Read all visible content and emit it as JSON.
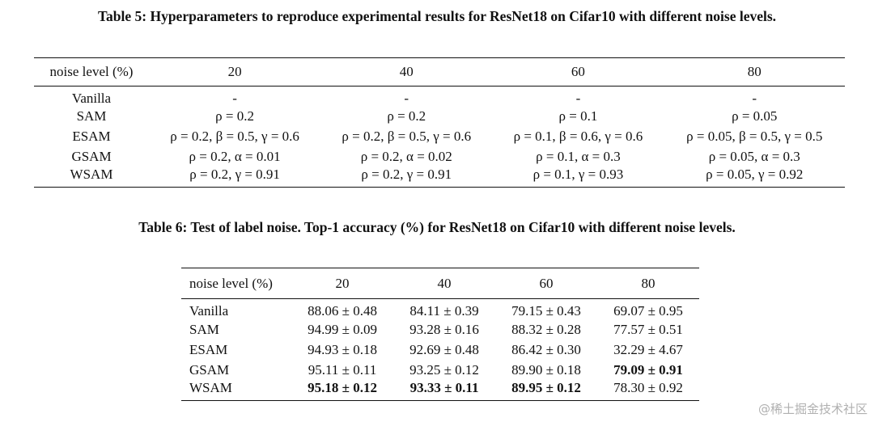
{
  "table5": {
    "caption": "Table 5: Hyperparameters to reproduce experimental results for ResNet18 on Cifar10 with different noise levels.",
    "header": [
      "noise level (%)",
      "20",
      "40",
      "60",
      "80"
    ],
    "rows": [
      {
        "name": "Vanilla",
        "cells": [
          "-",
          "-",
          "-",
          "-"
        ]
      },
      {
        "name": "SAM",
        "cells": [
          "ρ = 0.2",
          "ρ = 0.2",
          "ρ = 0.1",
          "ρ = 0.05"
        ]
      },
      {
        "name": "ESAM",
        "cells": [
          "ρ = 0.2, β = 0.5, γ = 0.6",
          "ρ = 0.2, β = 0.5, γ = 0.6",
          "ρ = 0.1, β = 0.6, γ = 0.6",
          "ρ = 0.05, β = 0.5, γ = 0.5"
        ]
      },
      {
        "name": "GSAM",
        "cells": [
          "ρ = 0.2, α = 0.01",
          "ρ = 0.2, α = 0.02",
          "ρ = 0.1, α = 0.3",
          "ρ = 0.05, α = 0.3"
        ]
      },
      {
        "name": "WSAM",
        "cells": [
          "ρ = 0.2, γ = 0.91",
          "ρ = 0.2, γ = 0.91",
          "ρ = 0.1, γ = 0.93",
          "ρ = 0.05, γ = 0.92"
        ]
      }
    ]
  },
  "table6": {
    "caption": "Table 6: Test of label noise. Top-1 accuracy (%) for ResNet18 on Cifar10 with different noise levels.",
    "header": [
      "noise level (%)",
      "20",
      "40",
      "60",
      "80"
    ],
    "rows": [
      {
        "name": "Vanilla",
        "cells": [
          "88.06 ± 0.48",
          "84.11 ± 0.39",
          "79.15 ± 0.43",
          "69.07 ± 0.95"
        ],
        "bold": [
          false,
          false,
          false,
          false
        ]
      },
      {
        "name": "SAM",
        "cells": [
          "94.99 ± 0.09",
          "93.28 ± 0.16",
          "88.32 ± 0.28",
          "77.57 ± 0.51"
        ],
        "bold": [
          false,
          false,
          false,
          false
        ]
      },
      {
        "name": "ESAM",
        "cells": [
          "94.93 ± 0.18",
          "92.69 ± 0.48",
          "86.42 ± 0.30",
          "32.29 ± 4.67"
        ],
        "bold": [
          false,
          false,
          false,
          false
        ]
      },
      {
        "name": "GSAM",
        "cells": [
          "95.11 ± 0.11",
          "93.25 ± 0.12",
          "89.90 ± 0.18",
          "79.09 ± 0.91"
        ],
        "bold": [
          false,
          false,
          false,
          true
        ]
      },
      {
        "name": "WSAM",
        "cells": [
          "95.18 ± 0.12",
          "93.33 ± 0.11",
          "89.95 ± 0.12",
          "78.30 ± 0.92"
        ],
        "bold": [
          true,
          true,
          true,
          false
        ]
      }
    ]
  },
  "watermark": "@稀土掘金技术社区"
}
